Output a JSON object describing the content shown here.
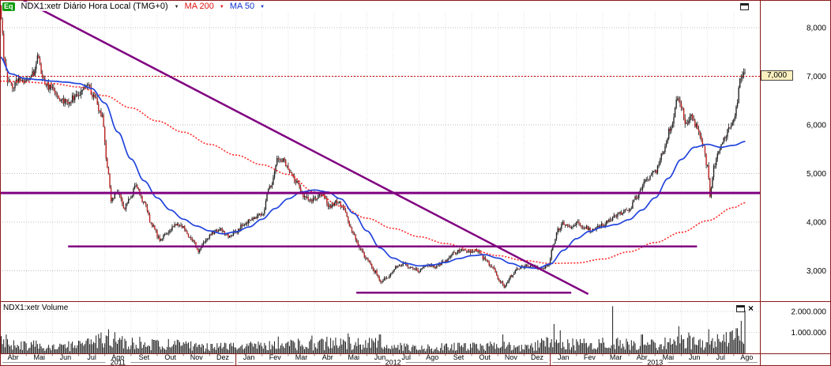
{
  "header": {
    "badge": "Eq",
    "title": "NDX1:xetr Diário Hora Local (TMG+0)",
    "dropdown_caret": "▼",
    "ma200_label": "MA 200",
    "ma50_label": "MA 50"
  },
  "icons": {
    "close_glyph": "×"
  },
  "volume_panel": {
    "title": "NDX1:xetr Volume"
  },
  "price_axis": {
    "alert_tag": "7,000"
  },
  "chart_data": {
    "type": "candlestick",
    "symbol": "NDX1:xetr",
    "timeframe_label": "Diário Hora Local (TMG+0)",
    "x_unit": "months_since_Abr_2011",
    "x_range": [
      0,
      28.45
    ],
    "months_per_axis": 29,
    "grid": true,
    "legend_position": "top-left",
    "price_ticks": [
      {
        "label": "8,000",
        "value": 8000
      },
      {
        "label": "7,000",
        "value": 7000
      },
      {
        "label": "6,000",
        "value": 6000
      },
      {
        "label": "5,000",
        "value": 5000
      },
      {
        "label": "4,000",
        "value": 4000
      },
      {
        "label": "3,000",
        "value": 3000
      }
    ],
    "volume_ticks": [
      {
        "label": "2.000.000",
        "value": 2000000
      },
      {
        "label": "1.000.000",
        "value": 1000000
      }
    ],
    "x_axis_months": [
      "Abr",
      "Mai",
      "Jun",
      "Jul",
      "Ago",
      "Set",
      "Out",
      "Nov",
      "Dez",
      "Jan",
      "Fev",
      "Mar",
      "Abr",
      "Mai",
      "Jun",
      "Jul",
      "Ago",
      "Set",
      "Out",
      "Nov",
      "Dez",
      "Jan",
      "Fev",
      "Mar",
      "Abr",
      "Mai",
      "Jun",
      "Jul",
      "Ago"
    ],
    "x_axis_years": [
      {
        "label": "2011",
        "start": 0,
        "end": 9
      },
      {
        "label": "2012",
        "start": 9,
        "end": 21
      },
      {
        "label": "2013",
        "start": 21,
        "end": 29
      }
    ],
    "alert_line": {
      "price": 7000,
      "label": "7,000",
      "style": "dotted"
    },
    "price_keypoints": [
      [
        0,
        8450
      ],
      [
        0.08,
        7900
      ],
      [
        0.18,
        7200
      ],
      [
        0.3,
        6950
      ],
      [
        0.5,
        6800
      ],
      [
        0.7,
        6950
      ],
      [
        1.0,
        6900
      ],
      [
        1.25,
        7050
      ],
      [
        1.45,
        7400
      ],
      [
        1.6,
        7050
      ],
      [
        1.8,
        6800
      ],
      [
        2.0,
        6750
      ],
      [
        2.3,
        6550
      ],
      [
        2.6,
        6450
      ],
      [
        2.8,
        6550
      ],
      [
        3.0,
        6650
      ],
      [
        3.3,
        6850
      ],
      [
        3.6,
        6600
      ],
      [
        3.9,
        6150
      ],
      [
        4.1,
        5100
      ],
      [
        4.25,
        4450
      ],
      [
        4.5,
        4650
      ],
      [
        4.75,
        4300
      ],
      [
        5.0,
        4550
      ],
      [
        5.2,
        4750
      ],
      [
        5.5,
        4400
      ],
      [
        5.8,
        3950
      ],
      [
        6.1,
        3650
      ],
      [
        6.4,
        3800
      ],
      [
        6.7,
        3950
      ],
      [
        7.0,
        3880
      ],
      [
        7.3,
        3650
      ],
      [
        7.6,
        3400
      ],
      [
        7.85,
        3620
      ],
      [
        8.1,
        3780
      ],
      [
        8.4,
        3850
      ],
      [
        8.7,
        3720
      ],
      [
        9.0,
        3800
      ],
      [
        9.3,
        3950
      ],
      [
        9.6,
        4060
      ],
      [
        10.0,
        4180
      ],
      [
        10.3,
        4700
      ],
      [
        10.6,
        5300
      ],
      [
        10.8,
        5280
      ],
      [
        11.0,
        5100
      ],
      [
        11.3,
        4820
      ],
      [
        11.6,
        4520
      ],
      [
        12.0,
        4460
      ],
      [
        12.3,
        4560
      ],
      [
        12.6,
        4320
      ],
      [
        12.85,
        4430
      ],
      [
        13.1,
        4300
      ],
      [
        13.4,
        3850
      ],
      [
        13.7,
        3500
      ],
      [
        14.0,
        3250
      ],
      [
        14.3,
        2990
      ],
      [
        14.55,
        2790
      ],
      [
        14.8,
        2870
      ],
      [
        15.1,
        3070
      ],
      [
        15.4,
        3140
      ],
      [
        15.7,
        3040
      ],
      [
        16.0,
        3000
      ],
      [
        16.3,
        3120
      ],
      [
        16.6,
        3080
      ],
      [
        17.0,
        3200
      ],
      [
        17.3,
        3350
      ],
      [
        17.6,
        3430
      ],
      [
        17.9,
        3380
      ],
      [
        18.2,
        3420
      ],
      [
        18.5,
        3250
      ],
      [
        18.8,
        3050
      ],
      [
        19.1,
        2780
      ],
      [
        19.25,
        2680
      ],
      [
        19.5,
        2900
      ],
      [
        19.8,
        3060
      ],
      [
        20.1,
        3100
      ],
      [
        20.4,
        3070
      ],
      [
        20.7,
        3030
      ],
      [
        20.95,
        3130
      ],
      [
        21.1,
        3500
      ],
      [
        21.3,
        3850
      ],
      [
        21.5,
        3960
      ],
      [
        21.7,
        3900
      ],
      [
        22.0,
        3980
      ],
      [
        22.3,
        3900
      ],
      [
        22.6,
        3830
      ],
      [
        23.0,
        3950
      ],
      [
        23.3,
        4060
      ],
      [
        23.6,
        4160
      ],
      [
        24.0,
        4260
      ],
      [
        24.3,
        4520
      ],
      [
        24.6,
        4820
      ],
      [
        25.0,
        5020
      ],
      [
        25.3,
        5420
      ],
      [
        25.6,
        5950
      ],
      [
        25.85,
        6550
      ],
      [
        26.0,
        6350
      ],
      [
        26.2,
        5980
      ],
      [
        26.4,
        6160
      ],
      [
        26.6,
        5960
      ],
      [
        26.8,
        5620
      ],
      [
        27.0,
        5150
      ],
      [
        27.1,
        4560
      ],
      [
        27.25,
        5180
      ],
      [
        27.45,
        5480
      ],
      [
        27.65,
        5720
      ],
      [
        27.85,
        5960
      ],
      [
        28.0,
        6080
      ],
      [
        28.12,
        6480
      ],
      [
        28.25,
        6900
      ],
      [
        28.35,
        7080
      ],
      [
        28.45,
        7000
      ]
    ],
    "ma200": {
      "label": "MA 200",
      "points": [
        [
          0,
          6900
        ],
        [
          1,
          6880
        ],
        [
          2,
          6850
        ],
        [
          3,
          6780
        ],
        [
          4,
          6600
        ],
        [
          5,
          6350
        ],
        [
          6,
          6080
        ],
        [
          7,
          5850
        ],
        [
          8,
          5600
        ],
        [
          9,
          5380
        ],
        [
          10,
          5180
        ],
        [
          11,
          4980
        ],
        [
          12,
          4620
        ],
        [
          13,
          4330
        ],
        [
          14,
          4080
        ],
        [
          15,
          3870
        ],
        [
          16,
          3700
        ],
        [
          17,
          3560
        ],
        [
          18,
          3430
        ],
        [
          19,
          3310
        ],
        [
          20,
          3210
        ],
        [
          21,
          3150
        ],
        [
          22,
          3160
        ],
        [
          23,
          3240
        ],
        [
          24,
          3390
        ],
        [
          25,
          3580
        ],
        [
          26,
          3790
        ],
        [
          27,
          4030
        ],
        [
          28,
          4300
        ],
        [
          28.45,
          4400
        ]
      ]
    },
    "ma50": {
      "label": "MA 50",
      "points": [
        [
          0,
          7400
        ],
        [
          0.4,
          7050
        ],
        [
          1,
          6950
        ],
        [
          1.5,
          6930
        ],
        [
          2,
          6900
        ],
        [
          2.5,
          6880
        ],
        [
          3,
          6850
        ],
        [
          3.5,
          6750
        ],
        [
          4,
          6450
        ],
        [
          4.5,
          5850
        ],
        [
          5,
          5300
        ],
        [
          5.5,
          4850
        ],
        [
          6,
          4500
        ],
        [
          6.5,
          4250
        ],
        [
          7,
          4060
        ],
        [
          7.5,
          3920
        ],
        [
          8,
          3820
        ],
        [
          8.5,
          3760
        ],
        [
          9,
          3800
        ],
        [
          9.5,
          3900
        ],
        [
          10,
          4060
        ],
        [
          10.5,
          4280
        ],
        [
          11,
          4480
        ],
        [
          11.5,
          4620
        ],
        [
          12,
          4660
        ],
        [
          12.5,
          4620
        ],
        [
          13,
          4480
        ],
        [
          13.5,
          4180
        ],
        [
          14,
          3820
        ],
        [
          14.5,
          3470
        ],
        [
          15,
          3260
        ],
        [
          15.5,
          3150
        ],
        [
          16,
          3100
        ],
        [
          16.5,
          3120
        ],
        [
          17,
          3170
        ],
        [
          17.5,
          3250
        ],
        [
          18,
          3310
        ],
        [
          18.5,
          3330
        ],
        [
          19,
          3260
        ],
        [
          19.5,
          3150
        ],
        [
          20,
          3070
        ],
        [
          20.5,
          3050
        ],
        [
          21,
          3140
        ],
        [
          21.5,
          3420
        ],
        [
          22,
          3660
        ],
        [
          22.5,
          3810
        ],
        [
          23,
          3900
        ],
        [
          23.5,
          3950
        ],
        [
          24,
          4050
        ],
        [
          24.5,
          4250
        ],
        [
          25,
          4500
        ],
        [
          25.5,
          4900
        ],
        [
          26,
          5290
        ],
        [
          26.5,
          5540
        ],
        [
          27,
          5600
        ],
        [
          27.5,
          5540
        ],
        [
          28,
          5580
        ],
        [
          28.45,
          5660
        ]
      ]
    },
    "volume_profile": [
      [
        0,
        520000
      ],
      [
        1,
        380000
      ],
      [
        2,
        320000
      ],
      [
        3,
        360000
      ],
      [
        4,
        650000
      ],
      [
        5,
        480000
      ],
      [
        6,
        420000
      ],
      [
        7,
        380000
      ],
      [
        8,
        300000
      ],
      [
        9,
        320000
      ],
      [
        10,
        380000
      ],
      [
        11,
        420000
      ],
      [
        12,
        450000
      ],
      [
        13,
        520000
      ],
      [
        14,
        470000
      ],
      [
        15,
        320000
      ],
      [
        16,
        260000
      ],
      [
        17,
        300000
      ],
      [
        18,
        310000
      ],
      [
        19,
        380000
      ],
      [
        20,
        260000
      ],
      [
        21,
        480000
      ],
      [
        22,
        420000
      ],
      [
        23,
        470000
      ],
      [
        24,
        420000
      ],
      [
        25,
        470000
      ],
      [
        26,
        520000
      ],
      [
        27,
        480000
      ],
      [
        28,
        700000
      ],
      [
        28.45,
        750000
      ]
    ],
    "volume_spikes": [
      [
        0.25,
        900000
      ],
      [
        4.15,
        1150000
      ],
      [
        4.4,
        950000
      ],
      [
        10.6,
        800000
      ],
      [
        11.9,
        850000
      ],
      [
        13.3,
        950000
      ],
      [
        14.5,
        900000
      ],
      [
        19.2,
        900000
      ],
      [
        21.15,
        1400000
      ],
      [
        21.4,
        1100000
      ],
      [
        23.4,
        2250000
      ],
      [
        24.5,
        900000
      ],
      [
        25.9,
        1300000
      ],
      [
        26.3,
        1000000
      ],
      [
        27.05,
        1150000
      ],
      [
        27.6,
        900000
      ],
      [
        28.12,
        1200000
      ],
      [
        28.3,
        1550000
      ],
      [
        28.42,
        2050000
      ]
    ],
    "trendlines": [
      {
        "name": "descending-trendline",
        "type": "diagonal",
        "from": [
          0.9,
          8560
        ],
        "to": [
          22.45,
          2520
        ],
        "width": 2.5
      },
      {
        "name": "resistance-4600",
        "type": "horizontal",
        "price": 4600,
        "from": 0,
        "to": 29,
        "width": 3
      },
      {
        "name": "support-3500",
        "type": "horizontal",
        "price": 3500,
        "from": 2.6,
        "to": 26.6,
        "width": 2.5
      },
      {
        "name": "support-2550",
        "type": "horizontal",
        "price": 2550,
        "from": 13.6,
        "to": 21.8,
        "width": 2.5
      }
    ],
    "colors": {
      "up": "#222222",
      "down": "#bb2222",
      "wick": "#1a1a1a",
      "ma200": "#ff2a2a",
      "ma50": "#2244dd",
      "trend": "#800080",
      "alert": "#cc0000",
      "grid": "#bbbbbb",
      "grid_vertical": "#e0e0e0",
      "border": "#8b1a1a",
      "volume": "#1c1c1c",
      "badge_bg": "#0d9b0d",
      "tag_bg": "#fdf0bf"
    }
  }
}
